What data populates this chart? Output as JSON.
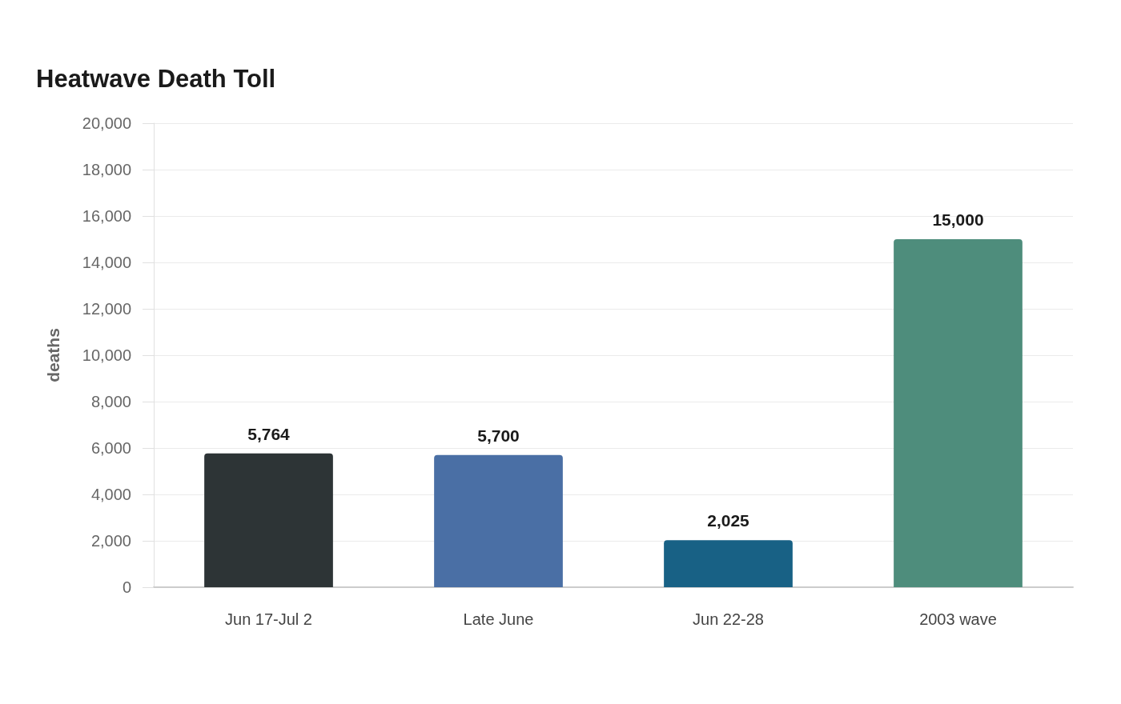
{
  "chart_data": {
    "type": "bar",
    "title": "Heatwave Death Toll",
    "ylabel": "deaths",
    "categories": [
      "Jun 17-Jul 2",
      "Late June",
      "Jun 22-28",
      "2003 wave"
    ],
    "values": [
      5764,
      5700,
      2025,
      15000
    ],
    "colors": [
      "#2d3436",
      "#4a6fa5",
      "#186185",
      "#4e8d7c"
    ],
    "value_labels": [
      "5,764",
      "5,700",
      "2,025",
      "15,000"
    ],
    "ylim": [
      0,
      20000
    ],
    "yticks": [
      0,
      {
        "value": 2000,
        "label": "2,000"
      },
      {
        "value": 4000,
        "label": "4,000"
      },
      {
        "value": 6000,
        "label": "6,000"
      },
      {
        "value": 8000,
        "label": "8,000"
      },
      {
        "value": 10000,
        "label": "10,000"
      },
      {
        "value": 12000,
        "label": "12,000"
      },
      {
        "value": 14000,
        "label": "14,000"
      },
      {
        "value": 16000,
        "label": "16,000"
      },
      {
        "value": 18000,
        "label": "18,000"
      },
      {
        "value": 20000,
        "label": "20,000"
      }
    ],
    "grid": "y"
  }
}
